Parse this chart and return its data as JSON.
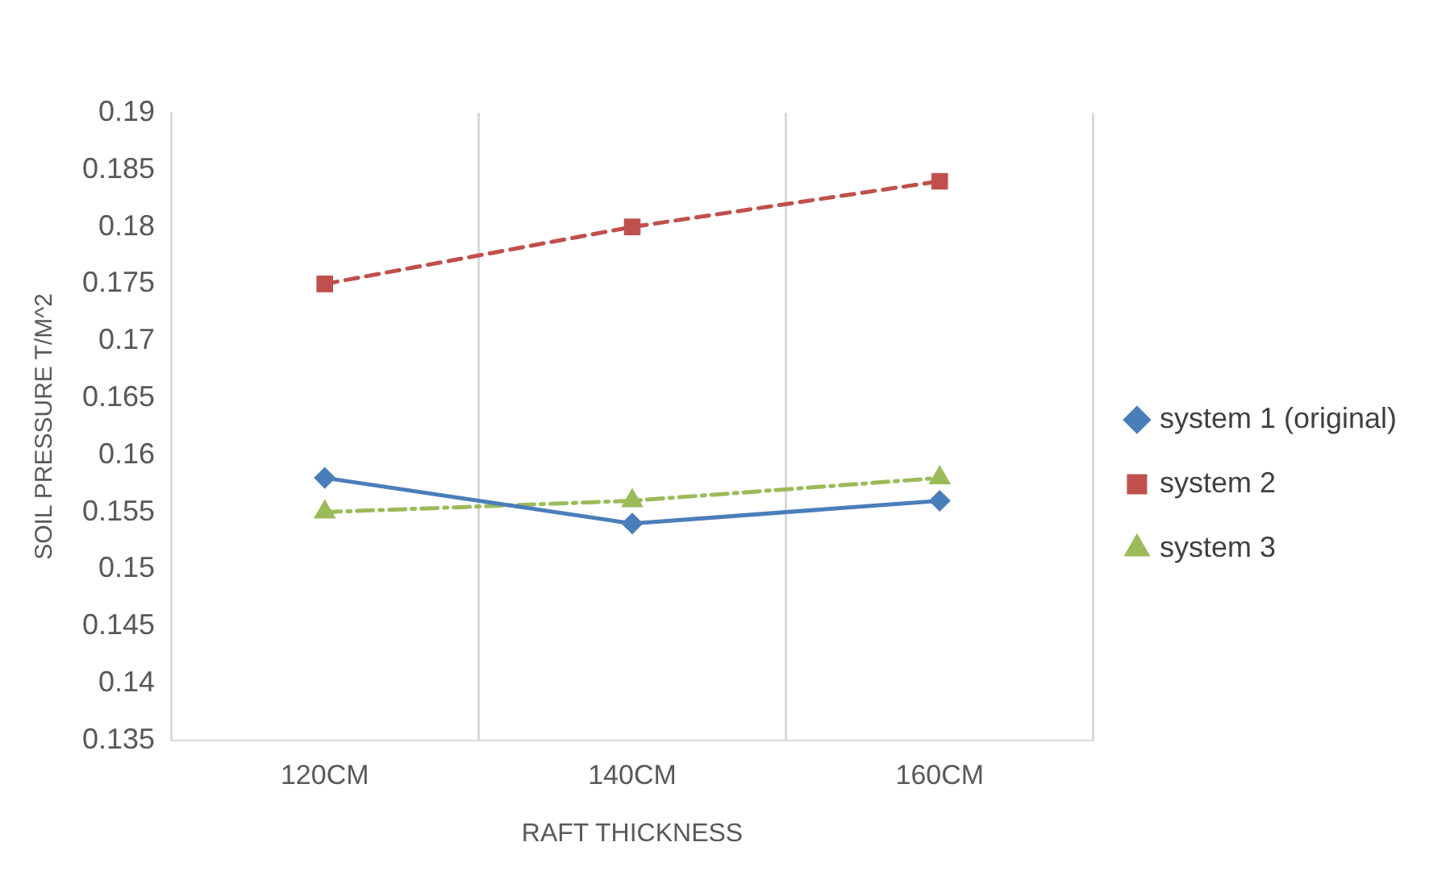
{
  "chart_data": {
    "type": "line",
    "xlabel": "RAFT THICKNESS",
    "ylabel": "SOIL PRESSURE T/M^2",
    "categories": [
      "120CM",
      "140CM",
      "160CM"
    ],
    "series": [
      {
        "name": "system 1 (original)",
        "color": "#4a7ebb",
        "values": [
          0.158,
          0.154,
          0.156
        ],
        "marker": "diamond",
        "line_style": "solid"
      },
      {
        "name": "system 2",
        "color": "#c0504d",
        "values": [
          0.175,
          0.18,
          0.184
        ],
        "marker": "square",
        "line_style": "dashed"
      },
      {
        "name": "system 3",
        "color": "#9bbb59",
        "values": [
          0.155,
          0.156,
          0.158
        ],
        "marker": "triangle",
        "line_style": "dashdot"
      }
    ],
    "ylim": [
      0.135,
      0.19
    ],
    "yticks": [
      0.135,
      0.14,
      0.145,
      0.15,
      0.155,
      0.16,
      0.165,
      0.17,
      0.175,
      0.18,
      0.185,
      0.19
    ],
    "grid": "x",
    "legend": "right"
  }
}
